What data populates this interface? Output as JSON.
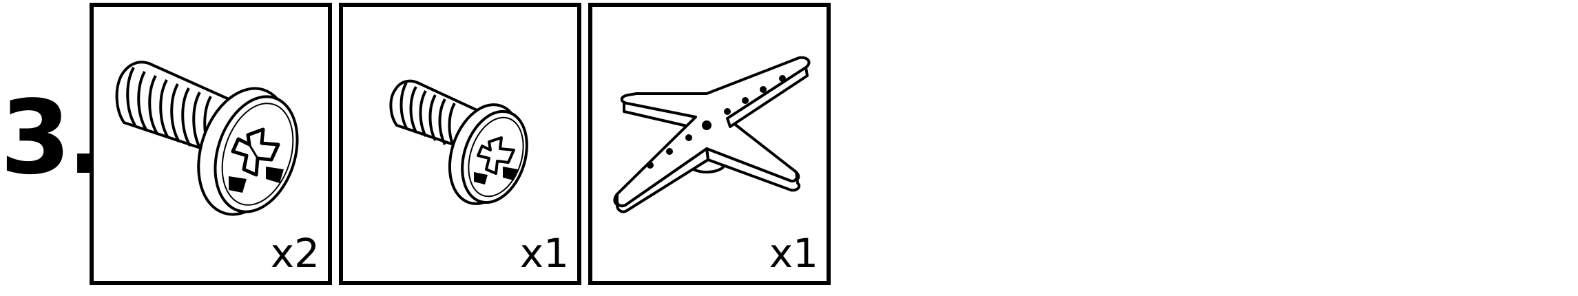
{
  "step": {
    "number_label": "3."
  },
  "parts": [
    {
      "icon": "large-phillips-screw-icon",
      "quantity": "x2"
    },
    {
      "icon": "small-phillips-screw-icon",
      "quantity": "x1"
    },
    {
      "icon": "servo-cross-horn-icon",
      "quantity": "x1"
    }
  ]
}
